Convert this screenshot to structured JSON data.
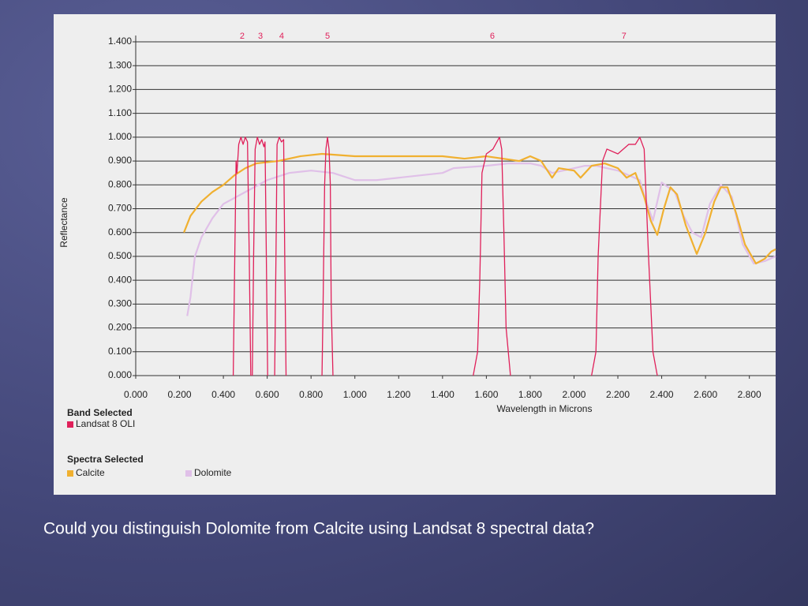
{
  "chart_data": {
    "type": "line",
    "x_label": "Wavelength in Microns",
    "y_label": "Reflectance",
    "band_legend_title": "Band Selected",
    "spectra_legend_title": "Spectra Selected",
    "xlim": [
      0,
      2.92
    ],
    "ylim": [
      0,
      1.4
    ],
    "xticks": [
      {
        "value": 0,
        "label": "0.000"
      },
      {
        "value": 0.2,
        "label": "0.200"
      },
      {
        "value": 0.4,
        "label": "0.400"
      },
      {
        "value": 0.6,
        "label": "0.600"
      },
      {
        "value": 0.8,
        "label": "0.800"
      },
      {
        "value": 1.0,
        "label": "1.000"
      },
      {
        "value": 1.2,
        "label": "1.200"
      },
      {
        "value": 1.4,
        "label": "1.400"
      },
      {
        "value": 1.6,
        "label": "1.600"
      },
      {
        "value": 1.8,
        "label": "1.800"
      },
      {
        "value": 2.0,
        "label": "2.000"
      },
      {
        "value": 2.2,
        "label": "2.200"
      },
      {
        "value": 2.4,
        "label": "2.400"
      },
      {
        "value": 2.6,
        "label": "2.600"
      },
      {
        "value": 2.8,
        "label": "2.800"
      }
    ],
    "yticks": [
      {
        "value": 0,
        "label": "0.000"
      },
      {
        "value": 0.1,
        "label": "0.100"
      },
      {
        "value": 0.2,
        "label": "0.200"
      },
      {
        "value": 0.3,
        "label": "0.300"
      },
      {
        "value": 0.4,
        "label": "0.400"
      },
      {
        "value": 0.5,
        "label": "0.500"
      },
      {
        "value": 0.6,
        "label": "0.600"
      },
      {
        "value": 0.7,
        "label": "0.700"
      },
      {
        "value": 0.8,
        "label": "0.800"
      },
      {
        "value": 0.9,
        "label": "0.900"
      },
      {
        "value": 1.0,
        "label": "1.000"
      },
      {
        "value": 1.1,
        "label": "1.100"
      },
      {
        "value": 1.2,
        "label": "1.200"
      },
      {
        "value": 1.3,
        "label": "1.300"
      },
      {
        "value": 1.4,
        "label": "1.400"
      }
    ],
    "grid": true,
    "band_labels": [
      {
        "label": "2",
        "x": 0.486
      },
      {
        "label": "3",
        "x": 0.569
      },
      {
        "label": "4",
        "x": 0.666
      },
      {
        "label": "5",
        "x": 0.875
      },
      {
        "label": "6",
        "x": 1.627
      },
      {
        "label": "7",
        "x": 2.228
      }
    ],
    "series": [
      {
        "name": "Landsat 8 OLI",
        "color": "#e0205a",
        "x": [
          0.445,
          0.452,
          0.458,
          0.462,
          0.47,
          0.48,
          0.49,
          0.5,
          0.51,
          0.518,
          0.525,
          null,
          0.532,
          0.538,
          0.545,
          0.555,
          0.565,
          0.575,
          0.585,
          0.59,
          0.596,
          0.602,
          null,
          0.634,
          0.64,
          0.645,
          0.655,
          0.665,
          0.675,
          0.68,
          0.686,
          null,
          0.85,
          0.855,
          0.862,
          0.868,
          0.875,
          0.882,
          0.888,
          0.892,
          0.9,
          null,
          1.54,
          1.56,
          1.57,
          1.58,
          1.6,
          1.63,
          1.66,
          1.67,
          1.68,
          1.69,
          1.71,
          null,
          2.08,
          2.1,
          2.11,
          2.13,
          2.15,
          2.2,
          2.25,
          2.28,
          2.3,
          2.32,
          2.34,
          2.36,
          2.38
        ],
        "values": [
          0,
          0.5,
          0.9,
          0.85,
          0.97,
          1.0,
          0.97,
          1.0,
          0.98,
          0.5,
          0,
          null,
          0,
          0.5,
          0.95,
          1.0,
          0.97,
          0.99,
          0.96,
          0.98,
          0.5,
          0,
          null,
          0,
          0.5,
          0.97,
          1.0,
          0.98,
          0.99,
          0.5,
          0,
          null,
          0,
          0.3,
          0.8,
          0.95,
          1.0,
          0.95,
          0.8,
          0.3,
          0,
          null,
          0,
          0.1,
          0.4,
          0.85,
          0.93,
          0.95,
          1.0,
          0.95,
          0.6,
          0.2,
          0,
          null,
          0,
          0.1,
          0.5,
          0.9,
          0.95,
          0.93,
          0.97,
          0.97,
          1.0,
          0.95,
          0.5,
          0.1,
          0
        ]
      },
      {
        "name": "Calcite",
        "color": "#f0b030",
        "x": [
          0.22,
          0.25,
          0.3,
          0.35,
          0.4,
          0.45,
          0.5,
          0.55,
          0.65,
          0.75,
          0.85,
          1.0,
          1.2,
          1.4,
          1.5,
          1.6,
          1.75,
          1.8,
          1.85,
          1.9,
          1.93,
          2.0,
          2.03,
          2.08,
          2.14,
          2.2,
          2.24,
          2.28,
          2.32,
          2.35,
          2.38,
          2.41,
          2.44,
          2.47,
          2.51,
          2.56,
          2.6,
          2.64,
          2.67,
          2.7,
          2.74,
          2.78,
          2.83,
          2.87,
          2.9,
          2.92
        ],
        "values": [
          0.6,
          0.67,
          0.73,
          0.77,
          0.8,
          0.84,
          0.87,
          0.89,
          0.9,
          0.92,
          0.93,
          0.92,
          0.92,
          0.92,
          0.91,
          0.92,
          0.9,
          0.92,
          0.9,
          0.83,
          0.87,
          0.86,
          0.83,
          0.88,
          0.89,
          0.87,
          0.83,
          0.85,
          0.75,
          0.65,
          0.59,
          0.7,
          0.79,
          0.76,
          0.63,
          0.51,
          0.6,
          0.73,
          0.79,
          0.79,
          0.68,
          0.55,
          0.47,
          0.49,
          0.52,
          0.53
        ]
      },
      {
        "name": "Dolomite",
        "color": "#e0c0e8",
        "x": [
          0.235,
          0.25,
          0.27,
          0.3,
          0.35,
          0.4,
          0.5,
          0.6,
          0.7,
          0.8,
          0.9,
          1.0,
          1.1,
          1.2,
          1.3,
          1.4,
          1.45,
          1.6,
          1.7,
          1.8,
          1.85,
          1.9,
          1.95,
          2.0,
          2.05,
          2.1,
          2.2,
          2.3,
          2.33,
          2.36,
          2.4,
          2.46,
          2.5,
          2.54,
          2.58,
          2.62,
          2.67,
          2.72,
          2.77,
          2.82,
          2.87,
          2.92
        ],
        "values": [
          0.25,
          0.33,
          0.5,
          0.58,
          0.66,
          0.72,
          0.77,
          0.82,
          0.85,
          0.86,
          0.85,
          0.82,
          0.82,
          0.83,
          0.84,
          0.85,
          0.87,
          0.88,
          0.89,
          0.89,
          0.88,
          0.85,
          0.86,
          0.87,
          0.88,
          0.88,
          0.86,
          0.82,
          0.73,
          0.65,
          0.81,
          0.77,
          0.67,
          0.6,
          0.58,
          0.72,
          0.8,
          0.75,
          0.55,
          0.47,
          0.48,
          0.5
        ]
      }
    ]
  },
  "caption": "Could you distinguish Dolomite from Calcite using Landsat 8 spectral data?"
}
